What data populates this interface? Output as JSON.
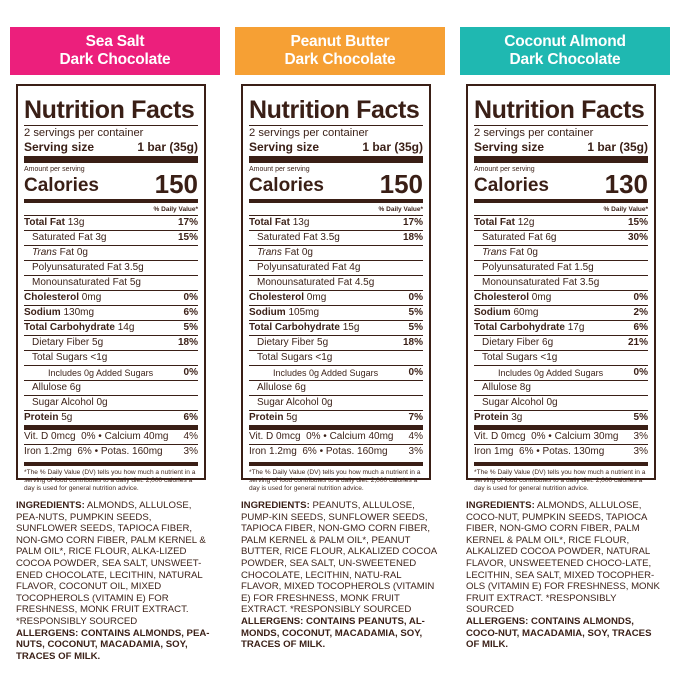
{
  "colors": {
    "sea_salt": "#ec1f7c",
    "peanut_butter": "#f6a034",
    "coconut_almond": "#1fb8b1",
    "brown": "#3a1f16"
  },
  "products": [
    {
      "name_line1": "Sea Salt",
      "name_line2": "Dark Chocolate",
      "nutrition_title": "Nutrition Facts",
      "servings": "2 servings per container",
      "serving_size_label": "Serving size",
      "serving_size_value": "1 bar (35g)",
      "amount_per_serving": "Amount per serving",
      "calories_label": "Calories",
      "calories_value": "150",
      "dv_header": "% Daily Value*",
      "total_fat": {
        "label": "Total Fat",
        "amount": "13g",
        "dv": "17%"
      },
      "saturated_fat": {
        "label": "Saturated Fat 3g",
        "dv": "15%"
      },
      "trans_fat": {
        "label_italic": "Trans",
        "label_rest": " Fat 0g"
      },
      "poly_fat": "Polyunsaturated Fat 3.5g",
      "mono_fat": "Monounsaturated Fat 5g",
      "cholesterol": {
        "label": "Cholesterol",
        "amount": "0mg",
        "dv": "0%"
      },
      "sodium": {
        "label": "Sodium",
        "amount": "130mg",
        "dv": "6%"
      },
      "carbs": {
        "label": "Total Carbohydrate",
        "amount": "14g",
        "dv": "5%"
      },
      "fiber": {
        "label": "Dietary Fiber 5g",
        "dv": "18%"
      },
      "sugars": "Total Sugars <1g",
      "added_sugars": {
        "label": "Includes 0g Added Sugars",
        "dv": "0%"
      },
      "allulose": "Allulose 6g",
      "sugar_alcohol": "Sugar Alcohol 0g",
      "protein": {
        "label": "Protein",
        "amount": "5g",
        "dv": "6%"
      },
      "vit_row1": {
        "left_label": "Vit. D 0mcg",
        "left_dv": "0%",
        "right_label": "Calcium 40mg",
        "right_dv": "4%"
      },
      "vit_row2": {
        "left_label": "Iron 1.2mg",
        "left_dv": "6%",
        "right_label": "Potas. 160mg",
        "right_dv": "3%"
      },
      "footnote": "*The % Daily Value (DV) tells you how much a nutrient in a serving of food contributes to a daily diet. 2,000 calories a day is used for general nutrition advice.",
      "ingredients_label": "INGREDIENTS:",
      "ingredients_text": "ALMONDS, ALLULOSE, PEA-NUTS, PUMPKIN SEEDS, SUNFLOWER SEEDS, TAPIOCA FIBER, NON-GMO CORN FIBER, PALM KERNEL & PALM OIL*, RICE FLOUR, ALKA-LIZED COCOA POWDER, SEA SALT, UNSWEET-ENED CHOCOLATE, LECITHIN, NATURAL FLAVOR, COCONUT OIL, MIXED TOCOPHEROLS (VITAMIN E) FOR FRESHNESS, MONK FRUIT EXTRACT. *RESPONSIBLY SOURCED",
      "allergens": "ALLERGENS: CONTAINS ALMONDS, PEA-NUTS, COCONUT, MACADAMIA, SOY, TRACES OF MILK."
    },
    {
      "name_line1": "Peanut Butter",
      "name_line2": "Dark Chocolate",
      "nutrition_title": "Nutrition Facts",
      "servings": "2 servings per container",
      "serving_size_label": "Serving size",
      "serving_size_value": "1 bar (35g)",
      "amount_per_serving": "Amount per serving",
      "calories_label": "Calories",
      "calories_value": "150",
      "dv_header": "% Daily Value*",
      "total_fat": {
        "label": "Total Fat",
        "amount": "13g",
        "dv": "17%"
      },
      "saturated_fat": {
        "label": "Saturated Fat 3.5g",
        "dv": "18%"
      },
      "trans_fat": {
        "label_italic": "Trans",
        "label_rest": " Fat 0g"
      },
      "poly_fat": "Polyunsaturated Fat 4g",
      "mono_fat": "Monounsaturated Fat 4.5g",
      "cholesterol": {
        "label": "Cholesterol",
        "amount": "0mg",
        "dv": "0%"
      },
      "sodium": {
        "label": "Sodium",
        "amount": "105mg",
        "dv": "5%"
      },
      "carbs": {
        "label": "Total Carbohydrate",
        "amount": "15g",
        "dv": "5%"
      },
      "fiber": {
        "label": "Dietary Fiber 5g",
        "dv": "18%"
      },
      "sugars": "Total Sugars <1g",
      "added_sugars": {
        "label": "Includes 0g Added Sugars",
        "dv": "0%"
      },
      "allulose": "Allulose 6g",
      "sugar_alcohol": "Sugar Alcohol 0g",
      "protein": {
        "label": "Protein",
        "amount": "5g",
        "dv": "7%"
      },
      "vit_row1": {
        "left_label": "Vit. D 0mcg",
        "left_dv": "0%",
        "right_label": "Calcium 40mg",
        "right_dv": "4%"
      },
      "vit_row2": {
        "left_label": "Iron 1.2mg",
        "left_dv": "6%",
        "right_label": "Potas. 160mg",
        "right_dv": "3%"
      },
      "footnote": "*The % Daily Value (DV) tells you how much a nutrient in a serving of food contributes to a daily diet. 2,000 calories a day is used for general nutrition advice.",
      "ingredients_label": "INGREDIENTS:",
      "ingredients_text": "PEANUTS, ALLULOSE, PUMP-KIN SEEDS, SUNFLOWER SEEDS, TAPIOCA FIBER, NON-GMO CORN FIBER, PALM KERNEL & PALM OIL*, PEANUT BUTTER, RICE FLOUR, ALKALIZED COCOA POWDER, SEA SALT, UN-SWEETENED CHOCOLATE, LECITHIN, NATU-RAL FLAVOR, MIXED TOCOPHEROLS (VITAMIN E) FOR FRESHNESS, MONK FRUIT EXTRACT. *RESPONSIBLY SOURCED",
      "allergens": "ALLERGENS: CONTAINS PEANUTS, AL-MONDS, COCONUT, MACADAMIA, SOY, TRACES OF MILK."
    },
    {
      "name_line1": "Coconut Almond",
      "name_line2": "Dark Chocolate",
      "nutrition_title": "Nutrition Facts",
      "servings": "2 servings per container",
      "serving_size_label": "Serving size",
      "serving_size_value": "1 bar (35g)",
      "amount_per_serving": "Amount per serving",
      "calories_label": "Calories",
      "calories_value": "130",
      "dv_header": "% Daily Value*",
      "total_fat": {
        "label": "Total Fat",
        "amount": "12g",
        "dv": "15%"
      },
      "saturated_fat": {
        "label": "Saturated Fat 6g",
        "dv": "30%"
      },
      "trans_fat": {
        "label_italic": "Trans",
        "label_rest": " Fat 0g"
      },
      "poly_fat": "Polyunsaturated Fat 1.5g",
      "mono_fat": "Monounsaturated Fat 3.5g",
      "cholesterol": {
        "label": "Cholesterol",
        "amount": "0mg",
        "dv": "0%"
      },
      "sodium": {
        "label": "Sodium",
        "amount": "60mg",
        "dv": "2%"
      },
      "carbs": {
        "label": "Total Carbohydrate",
        "amount": "17g",
        "dv": "6%"
      },
      "fiber": {
        "label": "Dietary Fiber 6g",
        "dv": "21%"
      },
      "sugars": "Total Sugars <1g",
      "added_sugars": {
        "label": "Includes 0g Added Sugars",
        "dv": "0%"
      },
      "allulose": "Allulose 8g",
      "sugar_alcohol": "Sugar Alcohol 0g",
      "protein": {
        "label": "Protein",
        "amount": "3g",
        "dv": "5%"
      },
      "vit_row1": {
        "left_label": "Vit. D 0mcg",
        "left_dv": "0%",
        "right_label": "Calcium 30mg",
        "right_dv": "3%"
      },
      "vit_row2": {
        "left_label": "Iron 1mg",
        "left_dv": "6%",
        "right_label": "Potas. 130mg",
        "right_dv": "3%"
      },
      "footnote": "*The % Daily Value (DV) tells you how much a nutrient in a serving of food contributes to a daily diet. 2,000 calories a day is used for general nutrition advice.",
      "ingredients_label": "INGREDIENTS:",
      "ingredients_text": "ALMONDS, ALLULOSE, COCO-NUT, PUMPKIN SEEDS, TAPIOCA FIBER, NON-GMO CORN FIBER, PALM KERNEL & PALM OIL*, RICE FLOUR, ALKALIZED COCOA POWDER, NATURAL FLAVOR, UNSWEETENED CHOCO-LATE, LECITHIN, SEA SALT, MIXED TOCOPHER-OLS (VITAMIN E) FOR FRESHNESS, MONK FRUIT EXTRACT. *RESPONSIBLY SOURCED",
      "allergens": "ALLERGENS: CONTAINS ALMONDS, COCO-NUT, MACADAMIA, SOY, TRACES OF MILK."
    }
  ]
}
